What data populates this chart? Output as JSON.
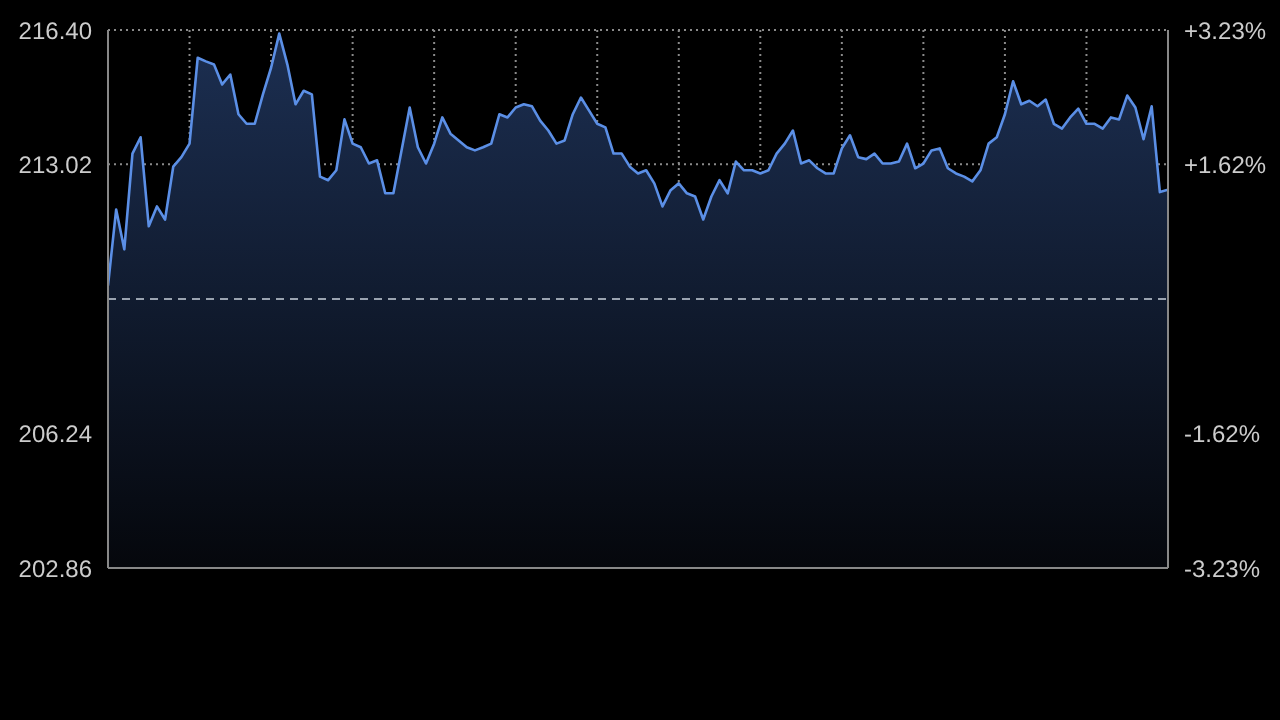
{
  "chart_data": {
    "type": "area",
    "categories": [
      null,
      null,
      null,
      null,
      null,
      null,
      null,
      null,
      null,
      null,
      null,
      null,
      null,
      null,
      null,
      null,
      null,
      null,
      null,
      null,
      null,
      null,
      null,
      null,
      null,
      null,
      null,
      null,
      null,
      null,
      null,
      null,
      null,
      null,
      null,
      null,
      null,
      null,
      null,
      null,
      null,
      null,
      null,
      null,
      null,
      null,
      null,
      null,
      null,
      null,
      null,
      null,
      null,
      null,
      null,
      null,
      null,
      null,
      null,
      null,
      null,
      null,
      null,
      null,
      null,
      null,
      null,
      null,
      null,
      null,
      null,
      null,
      null,
      null,
      null,
      null,
      null,
      null,
      null,
      null,
      null,
      null,
      null,
      null,
      null,
      null,
      null,
      null,
      null,
      null,
      null,
      null,
      null,
      null,
      null,
      null,
      null,
      null,
      null,
      null,
      null,
      null,
      null,
      null,
      null,
      null,
      null,
      null,
      null,
      null,
      null,
      null,
      null,
      null,
      null,
      null,
      null,
      null,
      null,
      null,
      null,
      null,
      null,
      null,
      null,
      null,
      null,
      null,
      null,
      null,
      null
    ],
    "series": [
      {
        "color": "#5b8fe6",
        "values": [
          209.97,
          211.88,
          210.88,
          213.29,
          213.7,
          211.46,
          211.96,
          211.63,
          212.96,
          213.2,
          213.54,
          215.7,
          215.61,
          215.53,
          215.03,
          215.28,
          214.28,
          214.04,
          214.04,
          214.78,
          215.45,
          216.31,
          215.53,
          214.53,
          214.87,
          214.78,
          212.71,
          212.62,
          212.87,
          214.15,
          213.54,
          213.45,
          213.04,
          213.12,
          212.29,
          212.29,
          213.37,
          214.45,
          213.45,
          213.04,
          213.54,
          214.2,
          213.79,
          213.62,
          213.45,
          213.37,
          213.45,
          213.54,
          214.28,
          214.2,
          214.45,
          214.53,
          214.48,
          214.12,
          213.87,
          213.54,
          213.62,
          214.28,
          214.7,
          214.37,
          214.04,
          213.95,
          213.29,
          213.29,
          212.96,
          212.79,
          212.87,
          212.54,
          211.96,
          212.37,
          212.54,
          212.29,
          212.21,
          211.63,
          212.21,
          212.62,
          212.29,
          213.09,
          212.87,
          212.87,
          212.79,
          212.87,
          213.29,
          213.54,
          213.87,
          213.04,
          213.12,
          212.92,
          212.79,
          212.79,
          213.42,
          213.75,
          213.2,
          213.15,
          213.29,
          213.04,
          213.04,
          213.09,
          213.54,
          212.92,
          213.04,
          213.37,
          213.42,
          212.92,
          212.79,
          212.71,
          212.59,
          212.87,
          213.54,
          213.7,
          214.28,
          215.11,
          214.53,
          214.62,
          214.48,
          214.65,
          214.04,
          213.92,
          214.2,
          214.42,
          214.04,
          214.04,
          213.92,
          214.2,
          214.15,
          214.75,
          214.45,
          213.65,
          214.48,
          212.32,
          212.38
        ]
      }
    ],
    "ylim": [
      202.86,
      216.4
    ],
    "yticks": [
      202.86,
      206.24,
      213.02,
      {
        "value": 216.4,
        "label": "216.40"
      }
    ],
    "y2lim": [
      -3.23,
      3.23
    ],
    "y2ticks": [
      {
        "value": -3.23,
        "label": "-3.23%"
      },
      {
        "value": -1.62,
        "label": "-1.62%"
      },
      {
        "value": 1.62,
        "label": "+1.62%"
      },
      {
        "value": 3.23,
        "label": "+3.23%"
      }
    ],
    "ref_lines": [
      {
        "axis": "y",
        "value": 209.63,
        "color": "#9aa3b0",
        "line_style": "dashed"
      }
    ],
    "grid": true,
    "tick_labels": "y",
    "legend": false
  }
}
